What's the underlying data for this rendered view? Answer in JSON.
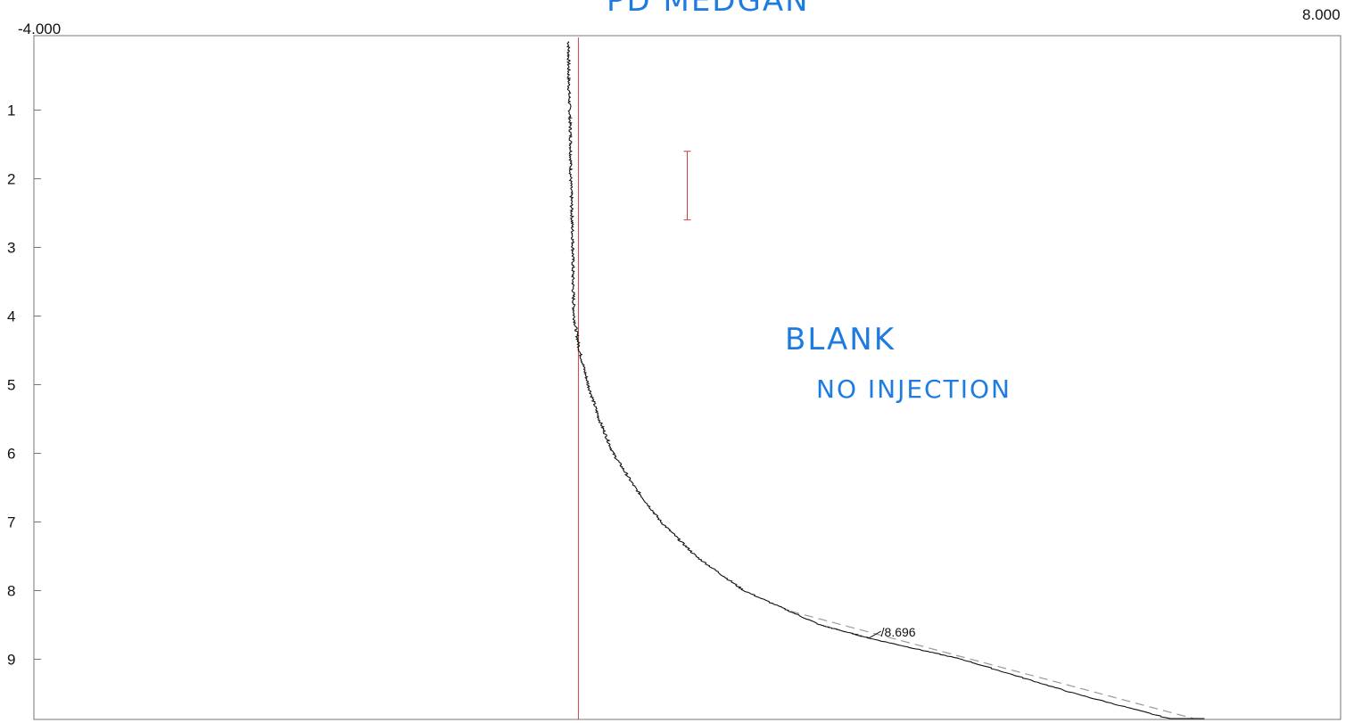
{
  "header": {
    "handwritten_title": "PD MEDGAN"
  },
  "annotations": {
    "line1": "BLANK",
    "line2": "NO INJECTION"
  },
  "colors": {
    "trace": "#111111",
    "baseline": "#9a9a9a",
    "marker": "#d04040",
    "frame": "#777777",
    "handwriting": "#1e7be0"
  },
  "chart_data": {
    "type": "line",
    "title": "",
    "xlabel": "",
    "ylabel": "",
    "orientation": "vertical-time",
    "signal_range": [
      -4.0,
      8.0
    ],
    "signal_range_labels": [
      "-4.000",
      "8.000"
    ],
    "time_range": [
      0,
      10.0
    ],
    "time_ticks": [
      1,
      2,
      3,
      4,
      5,
      6,
      7,
      8,
      9
    ],
    "series": [
      {
        "points": [
          [
            0.0,
            0.91
          ],
          [
            0.5,
            0.91
          ],
          [
            1.0,
            0.92
          ],
          [
            1.5,
            0.93
          ],
          [
            2.0,
            0.93
          ],
          [
            2.5,
            0.94
          ],
          [
            3.0,
            0.95
          ],
          [
            3.5,
            0.95
          ],
          [
            4.0,
            0.96
          ],
          [
            4.5,
            1.01
          ],
          [
            5.0,
            1.09
          ],
          [
            5.5,
            1.19
          ],
          [
            6.0,
            1.32
          ],
          [
            6.5,
            1.52
          ],
          [
            7.0,
            1.76
          ],
          [
            7.5,
            2.08
          ],
          [
            8.0,
            2.52
          ],
          [
            8.5,
            3.22
          ],
          [
            8.7,
            3.69
          ],
          [
            9.0,
            4.52
          ],
          [
            9.5,
            5.56
          ],
          [
            10.0,
            6.75
          ]
        ]
      }
    ],
    "baseline": [
      [
        8.3,
        2.95
      ],
      [
        10.0,
        6.65
      ]
    ],
    "peaks": [
      {
        "time": 8.696,
        "label": "8.696"
      }
    ],
    "markers": {
      "vertical_line_signal": 1.0,
      "error_bar": {
        "signal": 2.0,
        "time_start": 1.6,
        "time_end": 2.6
      }
    }
  }
}
